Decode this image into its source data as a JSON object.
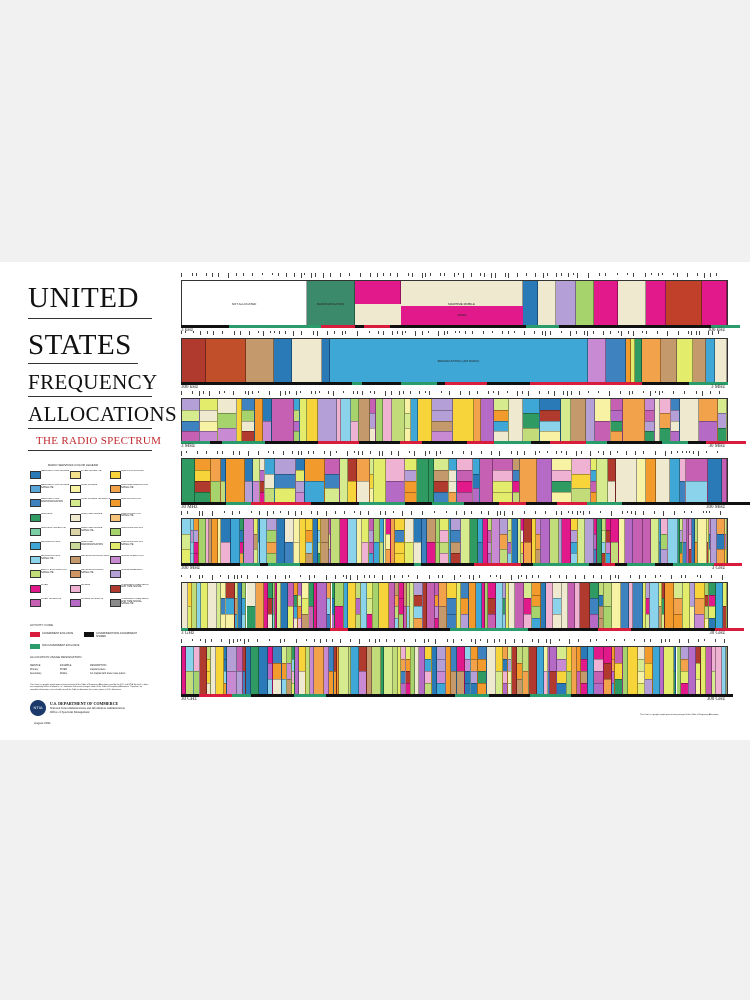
{
  "title": {
    "line1": "UNITED",
    "line2": "STATES",
    "line3": "FREQUENCY",
    "line4": "ALLOCATIONS",
    "subtitle": "THE RADIO SPECTRUM"
  },
  "legend": {
    "title": "RADIO SERVICES COLOR LEGEND",
    "items": [
      {
        "label": "AERONAUTICAL MOBILE",
        "color": "#2a7ab8"
      },
      {
        "label": "INTER-SATELLITE",
        "color": "#f2e08c"
      },
      {
        "label": "RADIO ASTRONOMY",
        "color": "#f7d439"
      },
      {
        "label": "AERONAUTICAL MOBILE SATELLITE",
        "color": "#5aa6d6"
      },
      {
        "label": "LAND MOBILE",
        "color": "#f7f2a4"
      },
      {
        "label": "RADIODETERMINATION SATELLITE",
        "color": "#f1a24a"
      },
      {
        "label": "AERONAUTICAL RADIONAVIGATION",
        "color": "#3e82bf"
      },
      {
        "label": "LAND MOBILE SATELLITE",
        "color": "#d6ea8e"
      },
      {
        "label": "RADIOLOCATION",
        "color": "#f29b2c"
      },
      {
        "label": "AMATEUR",
        "color": "#2f9a62"
      },
      {
        "label": "MARITIME MOBILE",
        "color": "#efe9cf"
      },
      {
        "label": "RADIOLOCATION SATELLITE",
        "color": "#f7c27a"
      },
      {
        "label": "AMATEUR SATELLITE",
        "color": "#7ccfa4"
      },
      {
        "label": "MARITIME MOBILE SATELLITE",
        "color": "#ddd5a8"
      },
      {
        "label": "RADIONAVIGATION",
        "color": "#a7d36c"
      },
      {
        "label": "BROADCASTING",
        "color": "#3fa7d6"
      },
      {
        "label": "MARITIME RADIONAVIGATION",
        "color": "#c9d99a"
      },
      {
        "label": "RADIONAVIGATION SATELLITE",
        "color": "#e3ec6b"
      },
      {
        "label": "BROADCASTING SATELLITE",
        "color": "#8ad3ea"
      },
      {
        "label": "METEOROLOGICAL AIDS",
        "color": "#c49a6c"
      },
      {
        "label": "SPACE OPERATION",
        "color": "#c78ad3"
      },
      {
        "label": "EARTH EXPLORATION SATELLITE",
        "color": "#c3dc7a"
      },
      {
        "label": "METEOROLOGICAL SATELLITE",
        "color": "#d09463"
      },
      {
        "label": "SPACE RESEARCH",
        "color": "#b4a0d6"
      },
      {
        "label": "FIXED",
        "color": "#e2198a"
      },
      {
        "label": "MOBILE",
        "color": "#efb2d2"
      },
      {
        "label": "STANDARD FREQUENCY AND TIME SIGNAL",
        "color": "#b03a2e"
      },
      {
        "label": "FIXED SATELLITE",
        "color": "#c560b3"
      },
      {
        "label": "MOBILE SATELLITE",
        "color": "#b56ac6"
      },
      {
        "label": "STANDARD FREQUENCY AND TIME SIGNAL SATELLITE",
        "color": "#8a8a8a"
      }
    ]
  },
  "activity": {
    "title": "ACTIVITY CODE",
    "items": [
      {
        "label": "GOVERNMENT EXCLUSIVE",
        "color": "#d81c3c"
      },
      {
        "label": "GOVERNMENT/NON-GOVERNMENT SHARED",
        "color": "#111111"
      },
      {
        "label": "NON-GOVERNMENT EXCLUSIVE",
        "color": "#2a9b6a"
      }
    ]
  },
  "usage": {
    "title": "ALLOCATION USAGE DESIGNATION",
    "rows": [
      [
        "SERVICE",
        "EXAMPLE",
        "DESCRIPTION"
      ],
      [
        "Primary",
        "FIXED",
        "Capital Letters"
      ],
      [
        "Secondary",
        "Mobile",
        "1st Capital with lower case letters"
      ]
    ]
  },
  "fineprint": "This chart is a graphic single-point-in-time portrayal of the Table of Frequency Allocations used by the FCC and NTIA. As such, it does not completely reflect all aspects, i.e., footnotes and recent changes made to the Table of Frequency Allocations. Therefore, for complete information, users should consult the Table to determine the current status of U.S. allocations.",
  "department": {
    "logo": "NTIA",
    "line1": "U.S. DEPARTMENT OF COMMERCE",
    "line2": "National Telecommunications and Information Administration",
    "line3": "Office of Spectrum Management",
    "date": "August 2011"
  },
  "bands": [
    {
      "start": "3 kHz",
      "end": "300 kHz"
    },
    {
      "start": "300 kHz",
      "end": "3 MHz"
    },
    {
      "start": "3 MHz",
      "end": "30 MHz"
    },
    {
      "start": "30 MHz",
      "end": "300 MHz"
    },
    {
      "start": "300 MHz",
      "end": "3 GHz"
    },
    {
      "start": "3 GHz",
      "end": "30 GHz"
    },
    {
      "start": "30 GHz",
      "end": "300 GHz"
    }
  ],
  "band1_labels": {
    "not_allocated": "NOT ALLOCATED",
    "radionavigation": "RADIONAVIGATION",
    "maritime_mobile": "MARITIME MOBILE",
    "fixed": "FIXED"
  },
  "band2_labels": {
    "broadcasting": "BROADCASTING (AM RADIO)"
  },
  "bottom_note": "This chart is a graphic single-point-in-time portrayal of the Table of Frequency Allocations"
}
